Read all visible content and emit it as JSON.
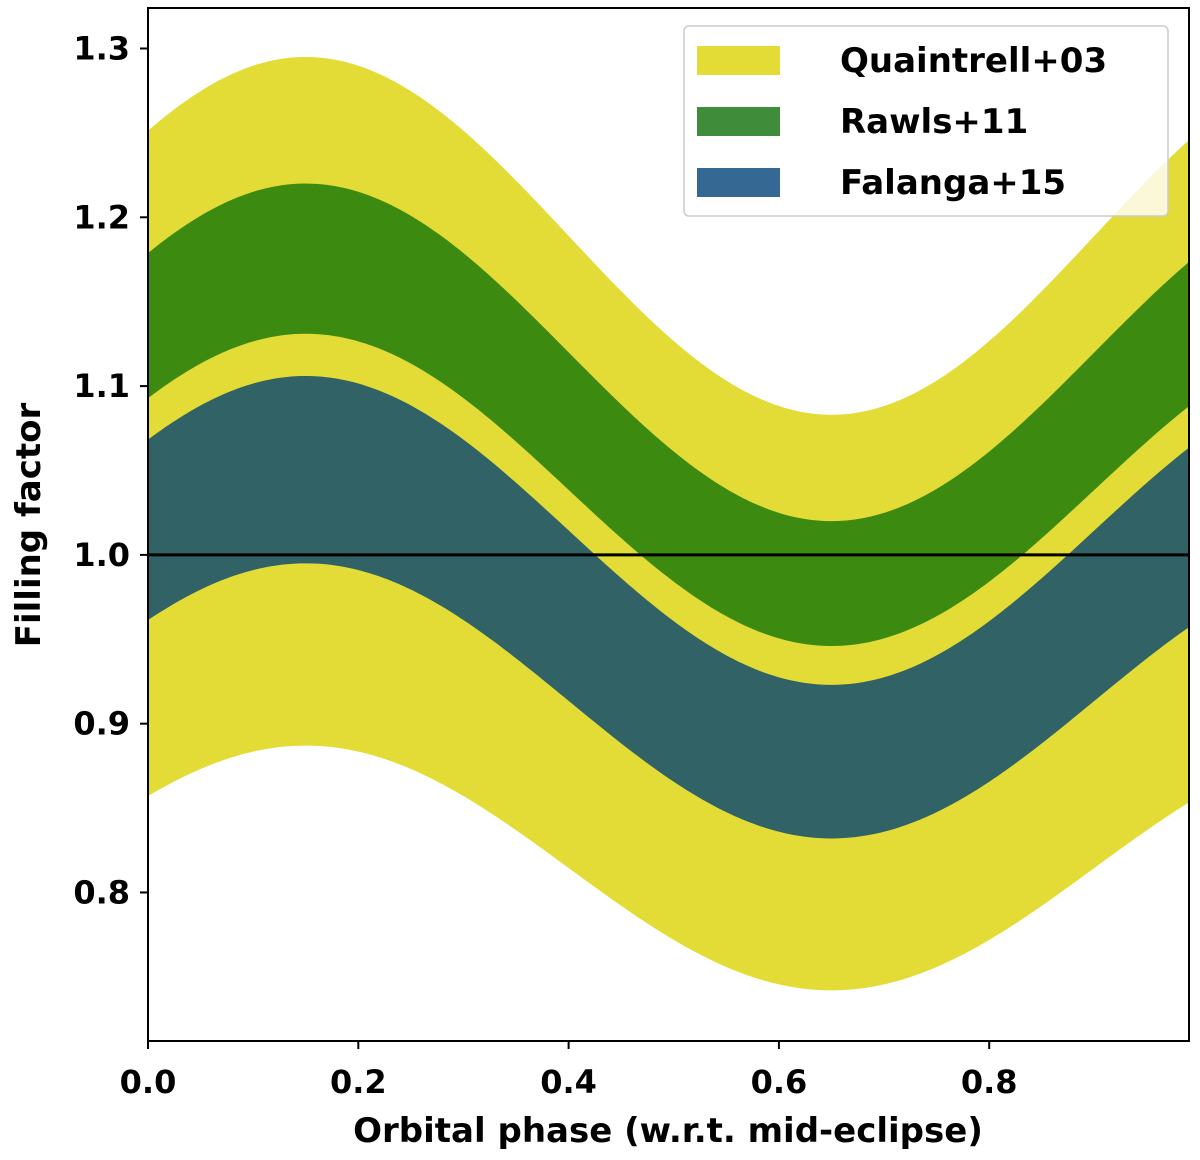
{
  "chart_data": {
    "type": "area",
    "title": "",
    "xlabel": "Orbital phase (w.r.t. mid-eclipse)",
    "ylabel": "Filling factor",
    "xlim": [
      0.0,
      0.99
    ],
    "ylim": [
      0.712,
      1.324
    ],
    "xticks": [
      0.0,
      0.2,
      0.4,
      0.6,
      0.8
    ],
    "xtick_labels": [
      "0.0",
      "0.2",
      "0.4",
      "0.6",
      "0.8"
    ],
    "yticks": [
      0.8,
      0.9,
      1.0,
      1.1,
      1.2,
      1.3
    ],
    "ytick_labels": [
      "0.8",
      "0.9",
      "1.0",
      "1.1",
      "1.2",
      "1.3"
    ],
    "grid": false,
    "legend_position": "top-right",
    "phase_of_peak": 0.15,
    "series": [
      {
        "name": "Quaintrell+03",
        "color": "#e3dc36",
        "upper": {
          "center": 1.189,
          "amplitude": 0.106
        },
        "lower": {
          "center": 0.8145,
          "amplitude": 0.0725
        }
      },
      {
        "name": "Rawls+11",
        "color": "#3c8a10",
        "upper": {
          "center": 1.12,
          "amplitude": 0.1
        },
        "lower": {
          "center": 1.0385,
          "amplitude": 0.0925
        }
      },
      {
        "name": "Falanga+15",
        "color": "#316266",
        "upper": {
          "center": 1.0145,
          "amplitude": 0.0915
        },
        "lower": {
          "center": 0.9135,
          "amplitude": 0.0815
        }
      }
    ],
    "legend_colors": [
      "#e3dc36",
      "#3f8c3a",
      "#356893"
    ],
    "reference_line": {
      "y": 1.0,
      "color": "#000000"
    }
  }
}
